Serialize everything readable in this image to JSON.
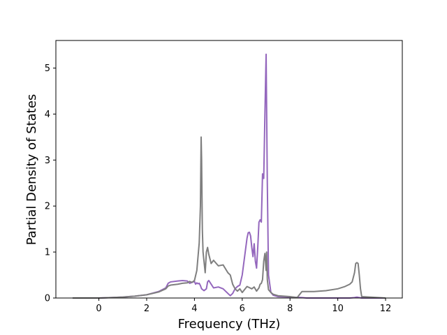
{
  "chart_data": {
    "type": "line",
    "xlabel": "Frequency (THz)",
    "ylabel": "Partial Density of States",
    "xlim": [
      -1.8,
      12.7
    ],
    "ylim": [
      0,
      5.6
    ],
    "xticks": [
      "0",
      "2",
      "4",
      "6",
      "8",
      "10",
      "12"
    ],
    "yticks": [
      "0",
      "1",
      "2",
      "3",
      "4",
      "5"
    ],
    "grid": false,
    "legend": "none",
    "series": [
      {
        "color": "#9467bd",
        "x": [
          -1.1,
          0.0,
          0.5,
          1.0,
          1.5,
          2.0,
          2.5,
          2.8,
          2.9,
          3.0,
          3.3,
          3.5,
          3.7,
          3.8,
          3.9,
          4.0,
          4.05,
          4.1,
          4.15,
          4.2,
          4.25,
          4.3,
          4.35,
          4.4,
          4.5,
          4.55,
          4.6,
          4.7,
          4.8,
          5.0,
          5.2,
          5.4,
          5.5,
          5.6,
          5.7,
          5.8,
          5.9,
          6.0,
          6.1,
          6.2,
          6.25,
          6.3,
          6.35,
          6.4,
          6.45,
          6.5,
          6.55,
          6.6,
          6.65,
          6.7,
          6.75,
          6.8,
          6.85,
          6.9,
          6.95,
          7.0,
          7.05,
          7.1,
          7.2,
          7.3,
          7.5,
          8.0,
          8.5,
          8.7,
          9.0,
          10.0,
          10.5,
          10.7,
          10.8,
          10.9,
          11.0,
          12.0
        ],
        "y": [
          0.0,
          0.0,
          0.01,
          0.02,
          0.04,
          0.07,
          0.14,
          0.22,
          0.32,
          0.35,
          0.37,
          0.38,
          0.37,
          0.32,
          0.34,
          0.36,
          0.3,
          0.33,
          0.31,
          0.32,
          0.27,
          0.2,
          0.18,
          0.16,
          0.2,
          0.35,
          0.38,
          0.3,
          0.22,
          0.24,
          0.2,
          0.1,
          0.05,
          0.1,
          0.2,
          0.25,
          0.28,
          0.5,
          0.9,
          1.3,
          1.42,
          1.43,
          1.35,
          1.1,
          0.9,
          1.18,
          0.8,
          0.65,
          1.1,
          1.65,
          1.7,
          1.65,
          2.7,
          2.6,
          4.0,
          5.3,
          2.5,
          0.5,
          0.12,
          0.06,
          0.03,
          0.02,
          0.01,
          0.0,
          0.0,
          0.0,
          0.0,
          0.01,
          0.02,
          0.01,
          0.0,
          0.0
        ]
      },
      {
        "color": "#7f7f7f",
        "x": [
          -1.1,
          0.0,
          0.5,
          1.0,
          1.5,
          2.0,
          2.5,
          2.8,
          2.9,
          3.0,
          3.3,
          3.5,
          3.7,
          3.8,
          3.9,
          4.0,
          4.1,
          4.15,
          4.2,
          4.25,
          4.28,
          4.3,
          4.33,
          4.36,
          4.4,
          4.45,
          4.5,
          4.55,
          4.6,
          4.7,
          4.8,
          5.0,
          5.2,
          5.4,
          5.5,
          5.6,
          5.7,
          5.8,
          5.9,
          6.0,
          6.2,
          6.4,
          6.5,
          6.6,
          6.7,
          6.75,
          6.8,
          6.85,
          6.9,
          6.95,
          7.0,
          7.02,
          7.05,
          7.1,
          7.2,
          7.3,
          7.5,
          8.0,
          8.3,
          8.5,
          9.0,
          9.5,
          10.0,
          10.3,
          10.5,
          10.6,
          10.7,
          10.75,
          10.8,
          10.85,
          10.9,
          10.95,
          11.0,
          12.0
        ],
        "y": [
          0.0,
          0.0,
          0.01,
          0.02,
          0.04,
          0.07,
          0.13,
          0.2,
          0.26,
          0.28,
          0.3,
          0.32,
          0.33,
          0.36,
          0.34,
          0.38,
          0.6,
          0.9,
          1.2,
          2.0,
          3.5,
          3.0,
          1.5,
          1.0,
          0.8,
          0.55,
          1.0,
          1.1,
          0.95,
          0.75,
          0.82,
          0.7,
          0.72,
          0.55,
          0.5,
          0.3,
          0.2,
          0.15,
          0.2,
          0.12,
          0.25,
          0.2,
          0.24,
          0.15,
          0.22,
          0.3,
          0.32,
          0.4,
          0.8,
          0.97,
          0.6,
          1.0,
          0.4,
          0.18,
          0.12,
          0.08,
          0.05,
          0.03,
          0.01,
          0.14,
          0.14,
          0.16,
          0.2,
          0.25,
          0.3,
          0.35,
          0.55,
          0.75,
          0.77,
          0.75,
          0.5,
          0.2,
          0.03,
          0.0
        ]
      }
    ]
  }
}
